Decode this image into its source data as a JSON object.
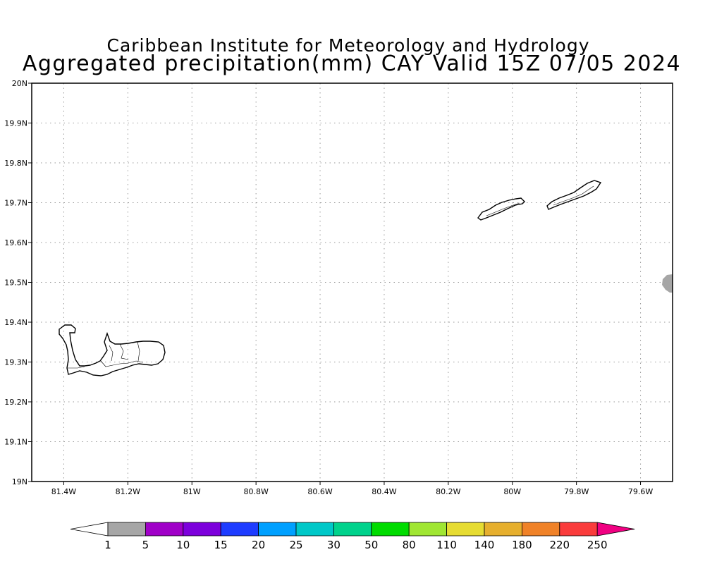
{
  "title": {
    "line1": "Caribbean Institute for Meteorology and Hydrology",
    "line2": "Aggregated precipitation(mm) CAY Valid 15Z 07/05 2024"
  },
  "map": {
    "region": "Cayman Islands",
    "lon_range": [
      -81.5,
      -79.5
    ],
    "lat_range": [
      19.0,
      20.0
    ],
    "lon_ticks": [
      -81.4,
      -81.2,
      -81.0,
      -80.8,
      -80.6,
      -80.4,
      -80.2,
      -80.0,
      -79.8,
      -79.6
    ],
    "lon_tick_labels": [
      "81.4W",
      "81.2W",
      "81W",
      "80.8W",
      "80.6W",
      "80.4W",
      "80.2W",
      "80W",
      "79.8W",
      "79.6W"
    ],
    "lat_ticks": [
      19.0,
      19.1,
      19.2,
      19.3,
      19.4,
      19.5,
      19.6,
      19.7,
      19.8,
      19.9,
      20.0
    ],
    "lat_tick_labels": [
      "19N",
      "19.1N",
      "19.2N",
      "19.3N",
      "19.4N",
      "19.5N",
      "19.6N",
      "19.7N",
      "19.8N",
      "19.9N",
      "20N"
    ],
    "grid": true,
    "precip_features": [
      {
        "lon": -79.52,
        "lat": 19.5,
        "class": "1-5",
        "color": "#a6a6a6"
      }
    ]
  },
  "colorbar": {
    "labels": [
      "1",
      "5",
      "10",
      "15",
      "20",
      "25",
      "30",
      "50",
      "80",
      "110",
      "140",
      "180",
      "220",
      "250"
    ],
    "colors": [
      "#a6a6a6",
      "#a000c8",
      "#7d00dc",
      "#1e3cff",
      "#00a0ff",
      "#00c8c8",
      "#00d28c",
      "#00dc00",
      "#a0e632",
      "#e6dc32",
      "#e6af2d",
      "#f08228",
      "#fa3c3c"
    ],
    "under_color": "#ffffff",
    "over_color": "#f00082"
  }
}
